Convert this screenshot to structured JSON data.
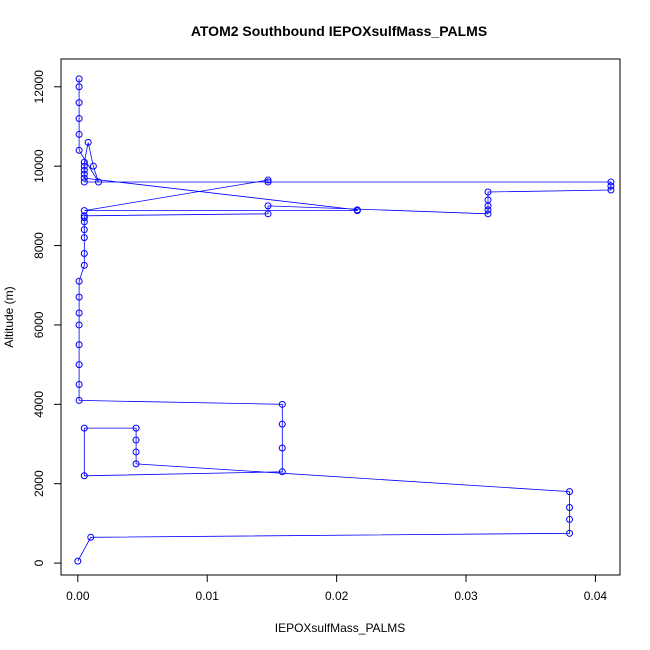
{
  "chart_data": {
    "type": "scatter",
    "title": "ATOM2 Southbound IEPOXsulfMass_PALMS",
    "xlabel": "IEPOXsulfMass_PALMS",
    "ylabel": "Altitude (m)",
    "xlim": [
      -0.0013,
      0.0419
    ],
    "ylim": [
      -300,
      12700
    ],
    "x_ticks": [
      0.0,
      0.01,
      0.02,
      0.03,
      0.04
    ],
    "x_tick_labels": [
      "0.00",
      "0.01",
      "0.02",
      "0.03",
      "0.04"
    ],
    "y_ticks": [
      0,
      2000,
      4000,
      6000,
      8000,
      10000,
      12000
    ],
    "y_tick_labels": [
      "0",
      "2000",
      "4000",
      "6000",
      "8000",
      "10000",
      "12000"
    ],
    "grid": false,
    "legend": "none",
    "series": [
      {
        "color": "#0000ff",
        "style": "points+lines",
        "x": [
          0.0,
          0.001,
          0.038,
          0.038,
          0.038,
          0.038,
          0.0045,
          0.0045,
          0.0045,
          0.0045,
          0.0005,
          0.0005,
          0.0158,
          0.0158,
          0.0158,
          0.0158,
          0.0001,
          0.0001,
          0.0001,
          0.0001,
          0.0001,
          0.0001,
          0.0001,
          0.0001,
          0.0005,
          0.0005,
          0.0005,
          0.0005,
          0.0005,
          0.0005,
          0.0005,
          0.0147,
          0.0147,
          0.0317,
          0.0317,
          0.0317,
          0.0317,
          0.0317,
          0.0412,
          0.0412,
          0.0412,
          0.0005,
          0.0147,
          0.0147,
          0.0005,
          0.0216,
          0.0216,
          0.0005,
          0.0005,
          0.0005,
          0.0005,
          0.0005,
          0.0008,
          0.0012,
          0.0016,
          0.0001,
          0.0001,
          0.0001,
          0.0001,
          0.0001,
          0.0001
        ],
        "y": [
          50,
          650,
          750,
          1100,
          1400,
          1800,
          2500,
          2800,
          3100,
          3400,
          3400,
          2200,
          2300,
          2900,
          3500,
          4000,
          4100,
          4500,
          5000,
          5500,
          6000,
          6300,
          6700,
          7100,
          7500,
          7800,
          8200,
          8400,
          8600,
          8700,
          8750,
          8800,
          9000,
          8800,
          8900,
          9000,
          9150,
          9350,
          9400,
          9500,
          9600,
          9600,
          9600,
          9650,
          8880,
          8880,
          8900,
          9700,
          9800,
          9900,
          10000,
          10100,
          10600,
          10000,
          9600,
          10400,
          10800,
          11200,
          11600,
          12000,
          12200
        ]
      }
    ]
  }
}
